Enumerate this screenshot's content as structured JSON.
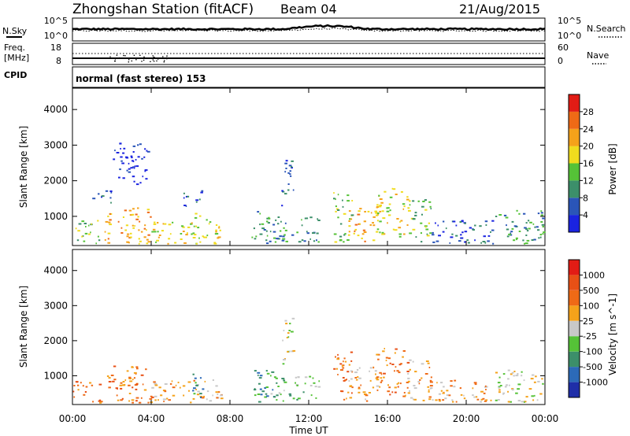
{
  "header": {
    "station": "Zhongshan Station (fitACF)",
    "beam": "Beam 04",
    "date": "21/Aug/2015"
  },
  "noise_panel": {
    "left_label": "N.Sky",
    "right_label": "N.Search",
    "left_ticks": [
      "10^5",
      "10^0"
    ],
    "right_ticks": [
      "10^5",
      "10^0"
    ]
  },
  "freq_panel": {
    "left_label_line1": "Freq.",
    "left_label_line2": "[MHz]",
    "right_label": "Nave",
    "left_ticks": [
      "18",
      "8"
    ],
    "right_ticks": [
      "60",
      "0"
    ]
  },
  "cpid_panel": {
    "label": "CPID",
    "text": "normal (fast stereo) 153"
  },
  "chart_data": [
    {
      "type": "heatmap",
      "name": "power",
      "ylabel": "Slant Range [km]",
      "ylim": [
        180,
        4600
      ],
      "yticks": [
        "1000",
        "2000",
        "3000",
        "4000"
      ],
      "yticks_values": [
        1000,
        2000,
        3000,
        4000
      ],
      "colorbar": {
        "label": "Power [dB]",
        "ticks": [
          "4",
          "8",
          "12",
          "16",
          "20",
          "24",
          "28"
        ],
        "colors": [
          "#1a23e0",
          "#2a55b8",
          "#3c8f6a",
          "#55c237",
          "#f0dc1e",
          "#f5a21a",
          "#ef6a16",
          "#e21c15"
        ]
      },
      "echo_regions": [
        {
          "t": [
            0.0,
            1.4
          ],
          "r": [
            250,
            900
          ],
          "level": 3
        },
        {
          "t": [
            1.0,
            2.0
          ],
          "r": [
            1400,
            1800
          ],
          "level": 1
        },
        {
          "t": [
            1.6,
            4.0
          ],
          "r": [
            250,
            1300
          ],
          "level": 5
        },
        {
          "t": [
            2.0,
            3.8
          ],
          "r": [
            1900,
            3100
          ],
          "level": 0
        },
        {
          "t": [
            4.0,
            7.6
          ],
          "r": [
            250,
            900
          ],
          "level": 4
        },
        {
          "t": [
            5.6,
            6.6
          ],
          "r": [
            1300,
            1800
          ],
          "level": 1
        },
        {
          "t": [
            6.0,
            6.8
          ],
          "r": [
            400,
            1100
          ],
          "level": 3
        },
        {
          "t": [
            9.0,
            10.2
          ],
          "r": [
            250,
            1200
          ],
          "level": 2
        },
        {
          "t": [
            10.6,
            11.2
          ],
          "r": [
            1300,
            2700
          ],
          "level": 1
        },
        {
          "t": [
            10.0,
            12.5
          ],
          "r": [
            300,
            1000
          ],
          "level": 2
        },
        {
          "t": [
            13.2,
            14.2
          ],
          "r": [
            300,
            1700
          ],
          "level": 3
        },
        {
          "t": [
            14.0,
            15.5
          ],
          "r": [
            300,
            1300
          ],
          "level": 5
        },
        {
          "t": [
            15.4,
            17.0
          ],
          "r": [
            400,
            1800
          ],
          "level": 4
        },
        {
          "t": [
            17.0,
            18.2
          ],
          "r": [
            300,
            1500
          ],
          "level": 3
        },
        {
          "t": [
            18.0,
            21.4
          ],
          "r": [
            250,
            900
          ],
          "level": 1
        },
        {
          "t": [
            21.4,
            23.9
          ],
          "r": [
            250,
            1200
          ],
          "level": 2
        }
      ]
    },
    {
      "type": "heatmap",
      "name": "velocity",
      "xlabel": "Time UT",
      "ylabel": "Slant Range [km]",
      "xlim": [
        "00:00",
        "24:00"
      ],
      "xticks": [
        "00:00",
        "04:00",
        "08:00",
        "12:00",
        "16:00",
        "20:00",
        "00:00"
      ],
      "ylim": [
        180,
        4600
      ],
      "yticks": [
        "1000",
        "2000",
        "3000",
        "4000"
      ],
      "yticks_values": [
        1000,
        2000,
        3000,
        4000
      ],
      "colorbar": {
        "label": "Velocity [m s^-1]",
        "ticks": [
          "1000",
          "500",
          "100",
          "25",
          "-25",
          "-100",
          "-500",
          "-1000"
        ],
        "colors": [
          "#1f2ea8",
          "#2c6ab8",
          "#3c8f6a",
          "#55c237",
          "#c8c8c8",
          "#f5a21a",
          "#ef6a16",
          "#e85016",
          "#e21c15"
        ]
      },
      "echo_regions": [
        {
          "t": [
            0.0,
            1.4
          ],
          "r": [
            250,
            900
          ],
          "level": 6
        },
        {
          "t": [
            1.6,
            4.0
          ],
          "r": [
            250,
            1300
          ],
          "level": 6
        },
        {
          "t": [
            4.0,
            7.6
          ],
          "r": [
            250,
            900
          ],
          "level": 5
        },
        {
          "t": [
            6.0,
            6.8
          ],
          "r": [
            400,
            1100
          ],
          "level": 2
        },
        {
          "t": [
            9.0,
            10.2
          ],
          "r": [
            250,
            1200
          ],
          "level": 2
        },
        {
          "t": [
            10.6,
            11.2
          ],
          "r": [
            1300,
            2700
          ],
          "level": 4
        },
        {
          "t": [
            10.0,
            12.5
          ],
          "r": [
            300,
            1000
          ],
          "level": 3
        },
        {
          "t": [
            13.2,
            14.2
          ],
          "r": [
            300,
            1700
          ],
          "level": 6
        },
        {
          "t": [
            14.0,
            15.5
          ],
          "r": [
            300,
            1300
          ],
          "level": 5
        },
        {
          "t": [
            15.4,
            17.0
          ],
          "r": [
            400,
            1800
          ],
          "level": 6
        },
        {
          "t": [
            17.0,
            18.2
          ],
          "r": [
            300,
            1500
          ],
          "level": 5
        },
        {
          "t": [
            18.0,
            21.4
          ],
          "r": [
            250,
            900
          ],
          "level": 5
        },
        {
          "t": [
            21.4,
            23.9
          ],
          "r": [
            250,
            1200
          ],
          "level": 4
        }
      ]
    }
  ]
}
